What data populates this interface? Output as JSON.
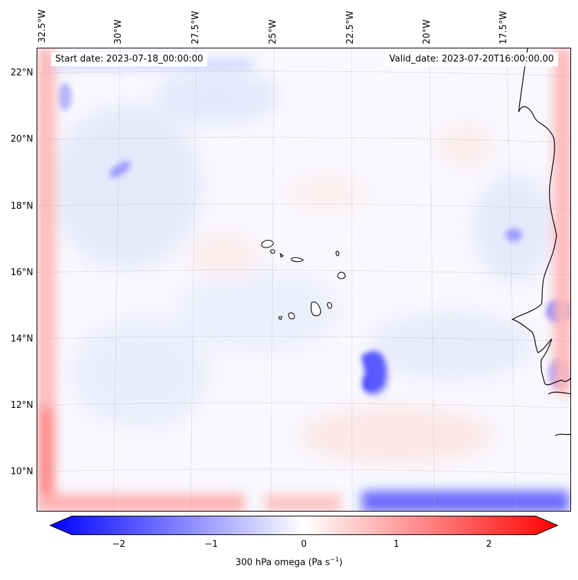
{
  "map": {
    "start_date": "Start date: 2023-07-18_00:00:00",
    "valid_date": "Valid_date: 2023-07-20T16:00:00.00",
    "longitude_labels": [
      "32.5°W",
      "30°W",
      "27.5°W",
      "25°W",
      "22.5°W",
      "20°W",
      "17.5°W"
    ],
    "latitude_labels": [
      "22°N",
      "20°N",
      "18°N",
      "16°N",
      "14°N",
      "12°N",
      "10°N"
    ]
  },
  "colorbar": {
    "label": "300 hPa omega (Pa s",
    "label_sup": "−1",
    "label_end": ")",
    "ticks": [
      "−2",
      "−1",
      "0",
      "1",
      "2"
    ],
    "min_color": "#0000ff",
    "mid_color": "#ffffff",
    "max_color": "#ff0000"
  }
}
